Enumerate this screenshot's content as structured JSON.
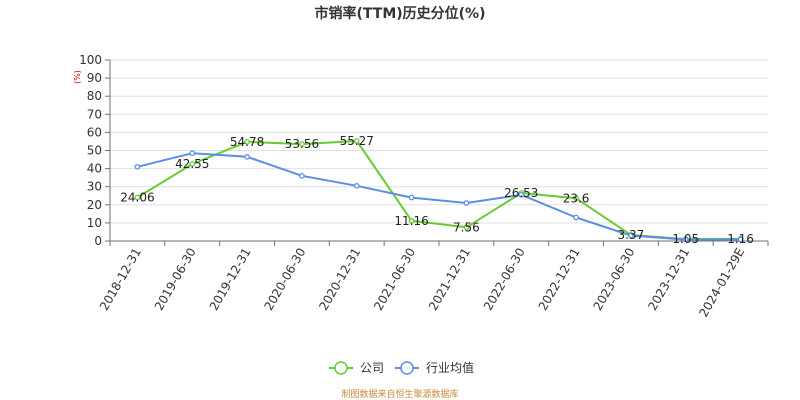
{
  "chart_data": {
    "type": "line",
    "title": "市销率(TTM)历史分位(%)",
    "y_unit": "(%)",
    "categories": [
      "2018-12-31",
      "2019-06-30",
      "2019-12-31",
      "2020-06-30",
      "2020-12-31",
      "2021-06-30",
      "2021-12-31",
      "2022-06-30",
      "2022-12-31",
      "2023-06-30",
      "2023-12-31",
      "2024-01-29E"
    ],
    "ylim": [
      0,
      100
    ],
    "yticks": [
      "0",
      "10",
      "20",
      "30",
      "40",
      "50",
      "60",
      "70",
      "80",
      "90",
      "100"
    ],
    "grid": true,
    "legend_position": "bottom-center",
    "series": [
      {
        "name": "公司",
        "color": "#66cc33",
        "values": [
          24.06,
          42.55,
          54.78,
          53.56,
          55.27,
          11.16,
          7.56,
          26.53,
          23.6,
          3.37,
          1.05,
          1.16
        ],
        "labels": [
          "24.06",
          "42.55",
          "54.78",
          "53.56",
          "55.27",
          "11.16",
          "7.56",
          "26.53",
          "23.6",
          "3.37",
          "1.05",
          "1.16"
        ]
      },
      {
        "name": "行业均值",
        "color": "#5b8ee6",
        "values": [
          41,
          48.5,
          46.5,
          36,
          30.5,
          24,
          21,
          25.5,
          13,
          3,
          0.8,
          0.9
        ]
      }
    ]
  },
  "source": "制图数据来自恒生聚源数据库"
}
